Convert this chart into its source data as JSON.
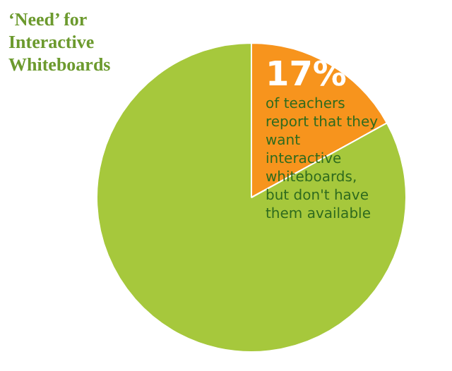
{
  "chart_data": {
    "type": "pie",
    "title": "‘Need’ for Interactive Whiteboards",
    "categories": [
      null,
      null
    ],
    "values": [
      17,
      83
    ],
    "colors": [
      "#f7941d",
      "#a6c83c"
    ],
    "value_labels": [
      "17%",
      null
    ],
    "annotations": [
      "of teachers report that they want interactive whiteboards, but don't have them available"
    ],
    "legend": false
  }
}
